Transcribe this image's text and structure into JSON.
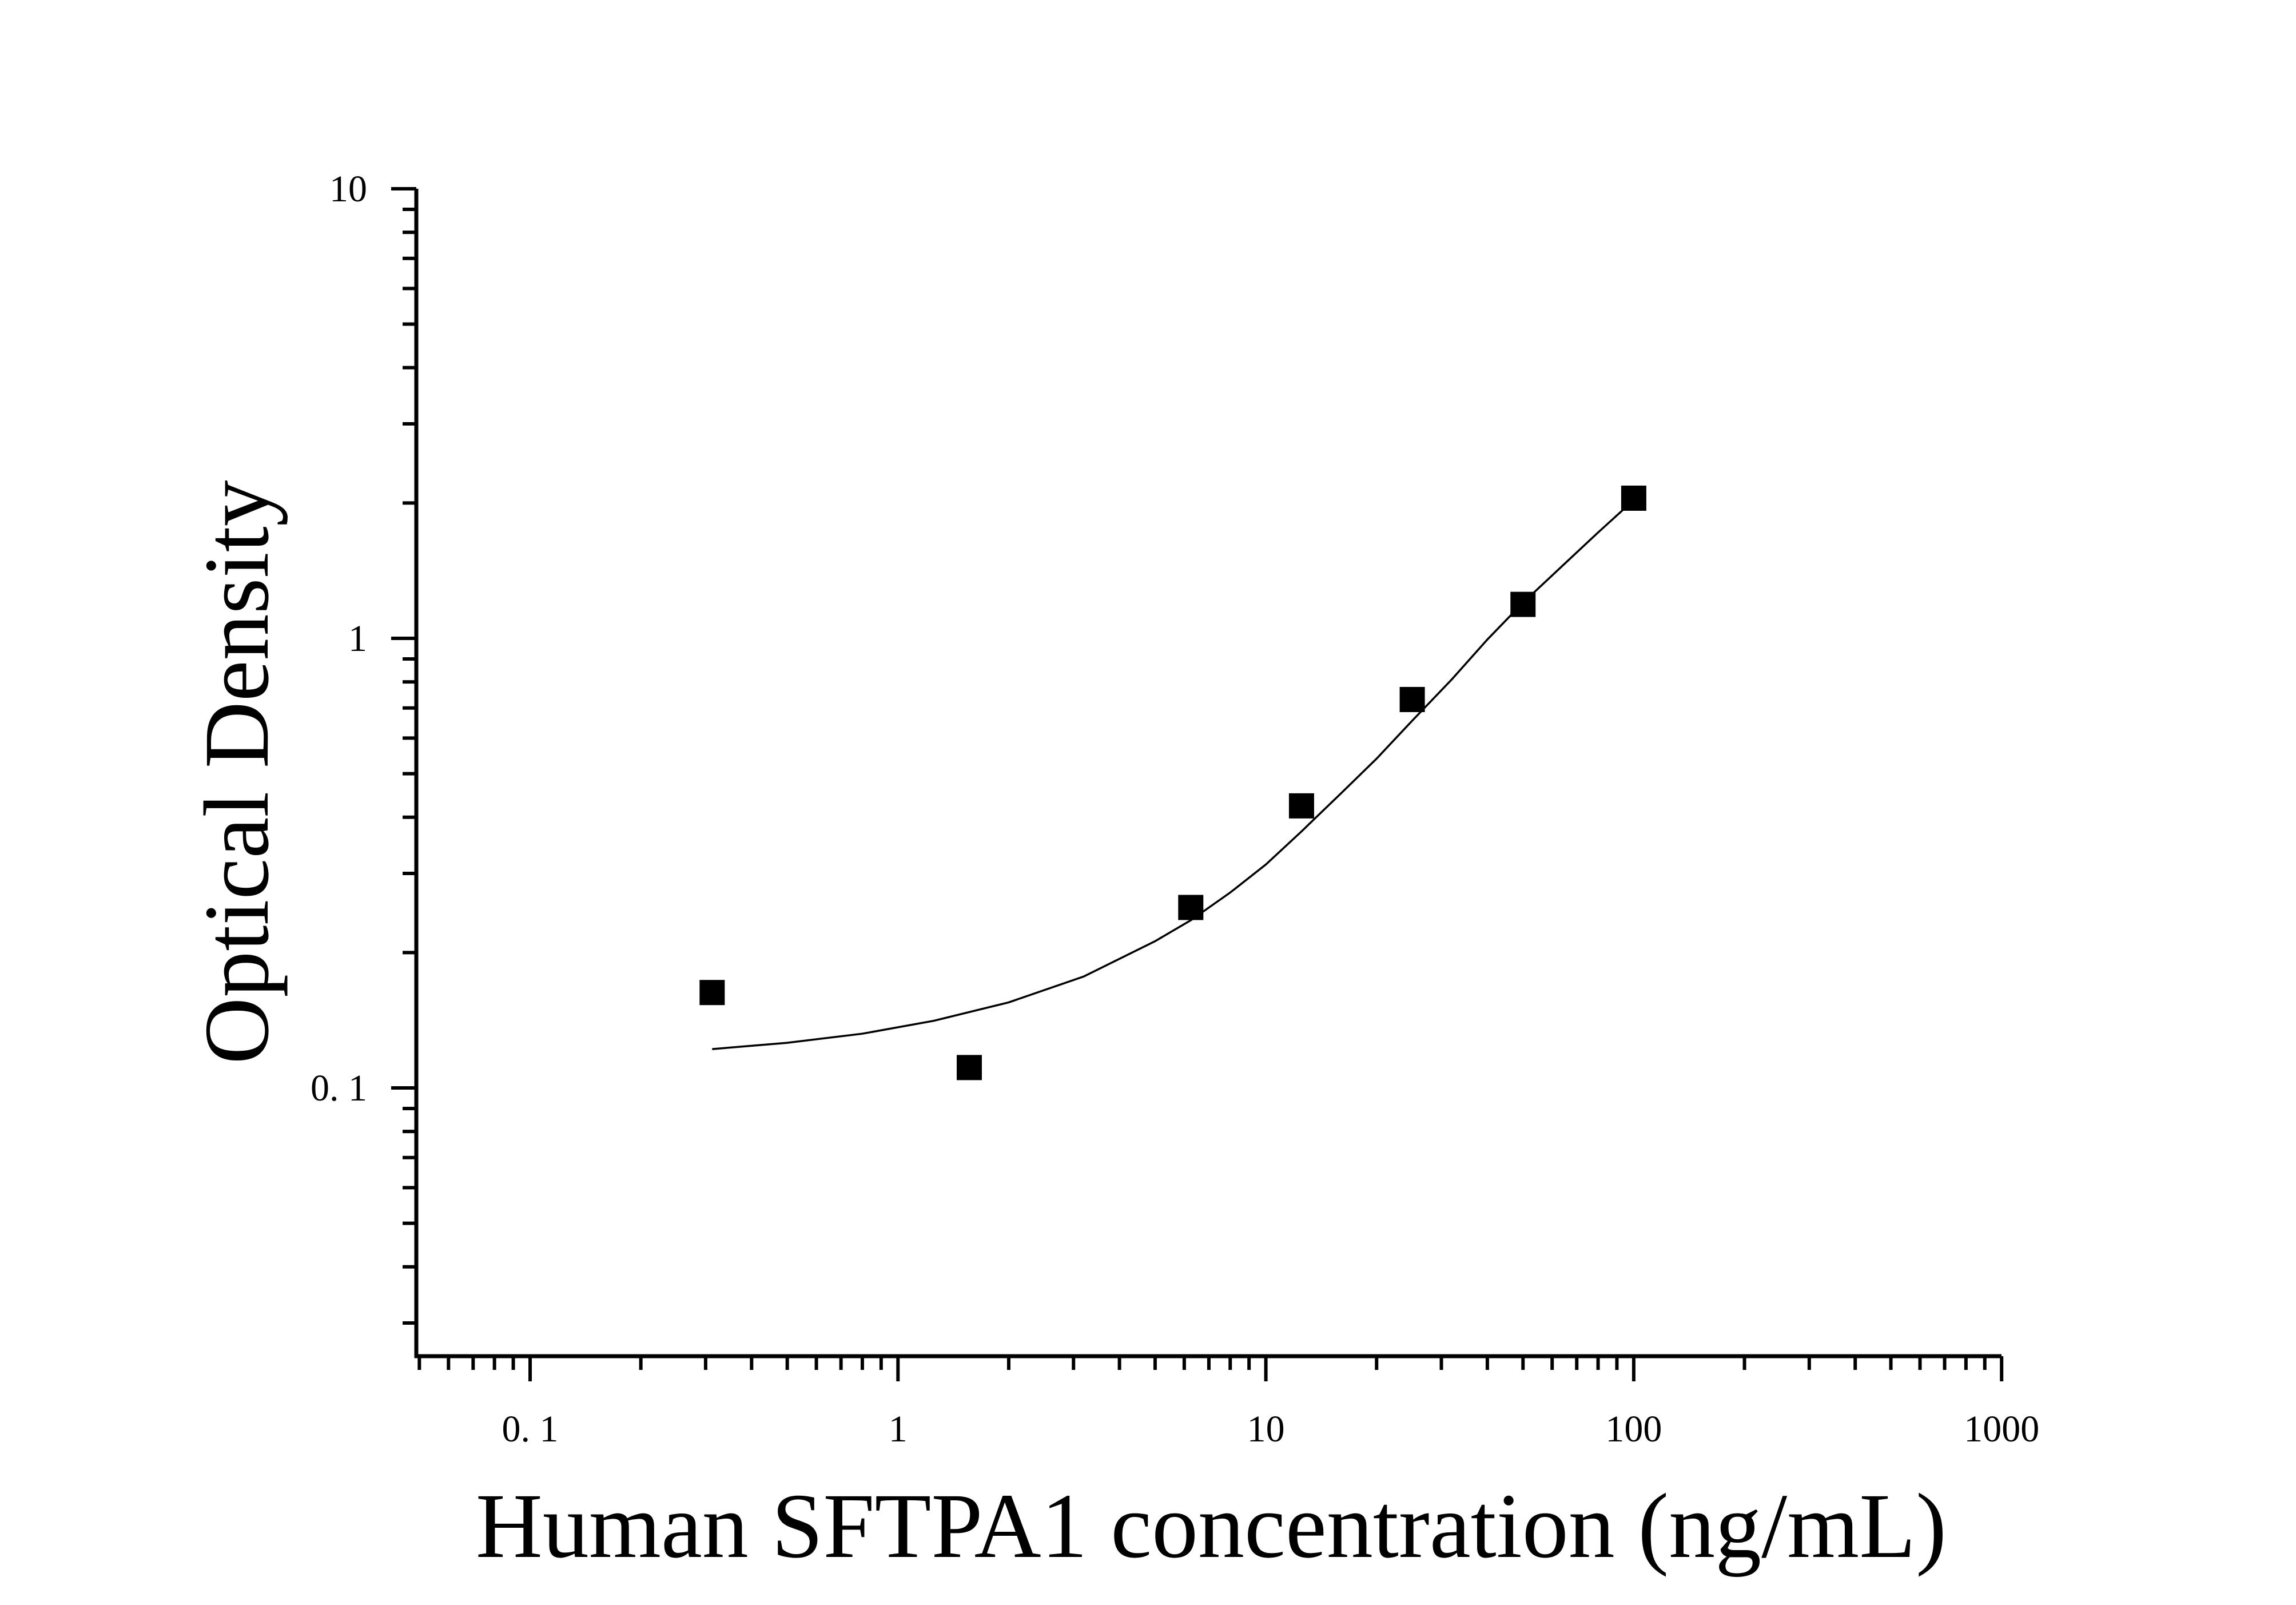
{
  "chart_data": {
    "type": "scatter",
    "title": "",
    "xlabel": "Human SFTPA1 concentration (ng/mL)",
    "ylabel": "Optical Density",
    "x_scale": "log",
    "y_scale": "log",
    "xlim": [
      0.05,
      1000
    ],
    "ylim": [
      0.025,
      10
    ],
    "x_ticks": [
      {
        "value": 0.1,
        "label": "0. 1"
      },
      {
        "value": 1,
        "label": "1"
      },
      {
        "value": 10,
        "label": "10"
      },
      {
        "value": 100,
        "label": "100"
      },
      {
        "value": 1000,
        "label": "1000"
      }
    ],
    "y_ticks": [
      {
        "value": 0.1,
        "label": "0. 1"
      },
      {
        "value": 1,
        "label": "1"
      },
      {
        "value": 10,
        "label": "10"
      }
    ],
    "grid": false,
    "legend": "none",
    "series": [
      {
        "kind": "points",
        "marker": "square",
        "color": "#000000",
        "points": [
          {
            "x": 0.3125,
            "y": 0.163
          },
          {
            "x": 1.5625,
            "y": 0.111
          },
          {
            "x": 6.25,
            "y": 0.252
          },
          {
            "x": 12.5,
            "y": 0.424
          },
          {
            "x": 25,
            "y": 0.731
          },
          {
            "x": 50,
            "y": 1.19
          },
          {
            "x": 100,
            "y": 2.05
          }
        ]
      },
      {
        "kind": "fit-curve",
        "color": "#000000",
        "points": [
          {
            "x": 0.3125,
            "y": 0.122
          },
          {
            "x": 0.5,
            "y": 0.126
          },
          {
            "x": 0.8,
            "y": 0.132
          },
          {
            "x": 1.25,
            "y": 0.141
          },
          {
            "x": 2,
            "y": 0.155
          },
          {
            "x": 3.2,
            "y": 0.177
          },
          {
            "x": 5,
            "y": 0.212
          },
          {
            "x": 6.25,
            "y": 0.236
          },
          {
            "x": 8,
            "y": 0.272
          },
          {
            "x": 10,
            "y": 0.314
          },
          {
            "x": 12.5,
            "y": 0.372
          },
          {
            "x": 16,
            "y": 0.452
          },
          {
            "x": 20,
            "y": 0.54
          },
          {
            "x": 25,
            "y": 0.656
          },
          {
            "x": 32,
            "y": 0.81
          },
          {
            "x": 40,
            "y": 0.994
          },
          {
            "x": 50,
            "y": 1.2
          },
          {
            "x": 64,
            "y": 1.45
          },
          {
            "x": 80,
            "y": 1.72
          },
          {
            "x": 100,
            "y": 2.03
          }
        ]
      }
    ]
  }
}
